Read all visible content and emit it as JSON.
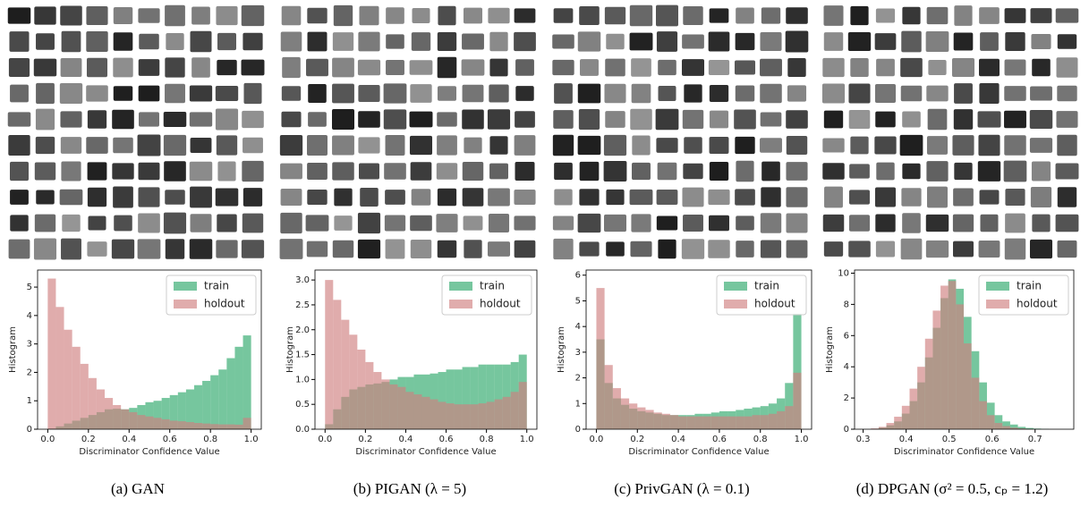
{
  "chart_data": [
    {
      "type": "histogram",
      "caption": "(a) GAN",
      "xlabel": "Discriminator Confidence Value",
      "ylabel": "Histogram",
      "bins": [
        0,
        0.04,
        0.08,
        0.12,
        0.16,
        0.2,
        0.24,
        0.28,
        0.32,
        0.36,
        0.4,
        0.44,
        0.48,
        0.52,
        0.56,
        0.6,
        0.64,
        0.68,
        0.72,
        0.76,
        0.8,
        0.84,
        0.88,
        0.92,
        0.96,
        1
      ],
      "series": [
        {
          "name": "train",
          "color": "#2ca86a",
          "values": [
            0.02,
            0.1,
            0.2,
            0.3,
            0.4,
            0.5,
            0.6,
            0.7,
            0.72,
            0.7,
            0.75,
            0.85,
            0.95,
            1.0,
            1.1,
            1.2,
            1.3,
            1.4,
            1.55,
            1.7,
            1.9,
            2.1,
            2.5,
            2.9,
            3.3
          ]
        },
        {
          "name": "holdout",
          "color": "#cf7f7f",
          "values": [
            5.3,
            4.3,
            3.5,
            2.9,
            2.3,
            1.8,
            1.4,
            1.1,
            0.85,
            0.7,
            0.6,
            0.5,
            0.45,
            0.4,
            0.35,
            0.3,
            0.28,
            0.25,
            0.22,
            0.2,
            0.18,
            0.17,
            0.17,
            0.16,
            0.4
          ]
        }
      ],
      "alpha": 0.65,
      "legend": "upper right",
      "xlim": [
        -0.05,
        1.05
      ],
      "ylim": [
        0,
        5.6
      ],
      "xticks": [
        {
          "value": 0,
          "label": "0.0"
        },
        0.2,
        0.4,
        0.6,
        0.8,
        {
          "value": 1,
          "label": "1.0"
        }
      ],
      "yticks": [
        0,
        1,
        2,
        3,
        4,
        5
      ]
    },
    {
      "type": "histogram",
      "caption": "(b) PIGAN (λ = 5)",
      "xlabel": "Discriminator Confidence Value",
      "ylabel": "Histogram",
      "bins": [
        0,
        0.04,
        0.08,
        0.12,
        0.16,
        0.2,
        0.24,
        0.28,
        0.32,
        0.36,
        0.4,
        0.44,
        0.48,
        0.52,
        0.56,
        0.6,
        0.64,
        0.68,
        0.72,
        0.76,
        0.8,
        0.84,
        0.88,
        0.92,
        0.96,
        1
      ],
      "series": [
        {
          "name": "train",
          "color": "#2ca86a",
          "values": [
            0.1,
            0.4,
            0.65,
            0.8,
            0.85,
            0.9,
            0.92,
            0.95,
            1.0,
            1.05,
            1.05,
            1.1,
            1.1,
            1.12,
            1.15,
            1.2,
            1.2,
            1.25,
            1.25,
            1.3,
            1.3,
            1.3,
            1.3,
            1.35,
            1.5
          ]
        },
        {
          "name": "holdout",
          "color": "#cf7f7f",
          "values": [
            3.0,
            2.6,
            2.2,
            1.9,
            1.6,
            1.35,
            1.15,
            1.0,
            0.9,
            0.85,
            0.75,
            0.7,
            0.65,
            0.6,
            0.55,
            0.52,
            0.5,
            0.5,
            0.5,
            0.52,
            0.55,
            0.6,
            0.65,
            0.75,
            0.95
          ]
        }
      ],
      "alpha": 0.65,
      "legend": "upper right",
      "xlim": [
        -0.05,
        1.05
      ],
      "ylim": [
        0,
        3.2
      ],
      "xticks": [
        {
          "value": 0,
          "label": "0.0"
        },
        0.2,
        0.4,
        0.6,
        0.8,
        {
          "value": 1,
          "label": "1.0"
        }
      ],
      "yticks": [
        {
          "value": 0,
          "label": "0.0"
        },
        0.5,
        {
          "value": 1,
          "label": "1.0"
        },
        1.5,
        {
          "value": 2,
          "label": "2.0"
        },
        2.5,
        {
          "value": 3,
          "label": "3.0"
        }
      ]
    },
    {
      "type": "histogram",
      "caption": "(c) PrivGAN (λ = 0.1)",
      "xlabel": "Discriminator Confidence Value",
      "ylabel": "Histogram",
      "bins": [
        0,
        0.04,
        0.08,
        0.12,
        0.16,
        0.2,
        0.24,
        0.28,
        0.32,
        0.36,
        0.4,
        0.44,
        0.48,
        0.52,
        0.56,
        0.6,
        0.64,
        0.68,
        0.72,
        0.76,
        0.8,
        0.84,
        0.88,
        0.92,
        0.96,
        1
      ],
      "series": [
        {
          "name": "train",
          "color": "#2ca86a",
          "values": [
            3.5,
            1.8,
            1.2,
            0.95,
            0.8,
            0.7,
            0.65,
            0.6,
            0.55,
            0.55,
            0.55,
            0.55,
            0.6,
            0.6,
            0.65,
            0.7,
            0.7,
            0.75,
            0.8,
            0.85,
            0.9,
            1.0,
            1.2,
            1.8,
            4.5
          ]
        },
        {
          "name": "holdout",
          "color": "#cf7f7f",
          "values": [
            5.5,
            2.5,
            1.6,
            1.2,
            1.0,
            0.85,
            0.75,
            0.65,
            0.6,
            0.55,
            0.5,
            0.5,
            0.5,
            0.5,
            0.5,
            0.5,
            0.5,
            0.5,
            0.5,
            0.55,
            0.55,
            0.6,
            0.7,
            0.9,
            2.2
          ]
        }
      ],
      "alpha": 0.65,
      "legend": "upper right",
      "xlim": [
        -0.05,
        1.05
      ],
      "ylim": [
        0,
        6.2
      ],
      "xticks": [
        {
          "value": 0,
          "label": "0.0"
        },
        0.2,
        0.4,
        0.6,
        0.8,
        {
          "value": 1,
          "label": "1.0"
        }
      ],
      "yticks": [
        0,
        1,
        2,
        3,
        4,
        5,
        6
      ]
    },
    {
      "type": "histogram",
      "caption": "(d) DPGAN (σ² = 0.5, cₚ = 1.2)",
      "xlabel": "Discriminator Confidence Value",
      "ylabel": "Histogram",
      "bins": [
        0.3,
        0.318,
        0.336,
        0.354,
        0.372,
        0.39,
        0.408,
        0.426,
        0.444,
        0.462,
        0.48,
        0.498,
        0.516,
        0.534,
        0.552,
        0.57,
        0.588,
        0.606,
        0.624,
        0.642,
        0.66,
        0.678,
        0.696,
        0.714,
        0.732,
        0.75
      ],
      "series": [
        {
          "name": "train",
          "color": "#2ca86a",
          "values": [
            0,
            0.02,
            0.1,
            0.25,
            0.5,
            1.0,
            1.8,
            3.0,
            4.6,
            6.5,
            8.4,
            9.6,
            9.0,
            7.2,
            5.0,
            3.0,
            1.7,
            0.9,
            0.5,
            0.3,
            0.15,
            0.08,
            0.04,
            0.02,
            0
          ]
        },
        {
          "name": "holdout",
          "color": "#cf7f7f",
          "values": [
            0,
            0.05,
            0.15,
            0.4,
            0.8,
            1.5,
            2.6,
            4.0,
            5.8,
            7.6,
            9.2,
            9.5,
            8.0,
            5.5,
            3.3,
            1.8,
            0.9,
            0.4,
            0.2,
            0.1,
            0.05,
            0.02,
            0,
            0,
            0
          ]
        }
      ],
      "alpha": 0.65,
      "legend": "upper right",
      "xlim": [
        0.28,
        0.79
      ],
      "ylim": [
        0,
        10.2
      ],
      "xticks": [
        0.3,
        0.4,
        0.5,
        0.6,
        0.7
      ],
      "yticks": [
        0,
        2,
        4,
        6,
        8,
        10
      ]
    }
  ]
}
